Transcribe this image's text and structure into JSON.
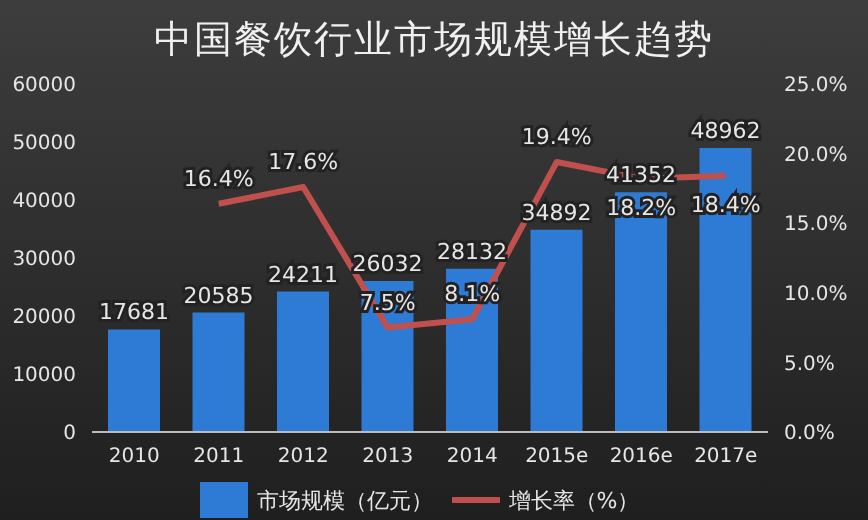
{
  "chart_data": {
    "type": "bar",
    "title": "中国餐饮行业市场规模增长趋势",
    "categories": [
      "2010",
      "2011",
      "2012",
      "2013",
      "2014",
      "2015e",
      "2016e",
      "2017e"
    ],
    "series": [
      {
        "name": "市场规模（亿元）",
        "color": "#2e7bd6",
        "values": [
          17681,
          20585,
          24211,
          26032,
          28132,
          34892,
          41352,
          48962
        ],
        "value_labels": [
          "17681",
          "20585",
          "24211",
          "26032",
          "28132",
          "34892",
          "41352",
          "48962"
        ]
      },
      {
        "name": "增长率（%）",
        "type": "line",
        "axis": "y2",
        "color": "#c0504d",
        "values": [
          null,
          16.4,
          17.6,
          7.5,
          8.1,
          19.4,
          18.2,
          18.4
        ],
        "value_labels": [
          null,
          "16.4%",
          "17.6%",
          "7.5%",
          "8.1%",
          "19.4%",
          "18.2%",
          "18.4%"
        ]
      }
    ],
    "ylim": [
      0,
      60000
    ],
    "yticks": [
      0,
      10000,
      20000,
      30000,
      40000,
      50000,
      60000
    ],
    "y2lim": [
      0,
      25
    ],
    "y2ticks": [
      {
        "value": 0,
        "label": "0.0%"
      },
      {
        "value": 5,
        "label": "5.0%"
      },
      {
        "value": 10,
        "label": "10.0%"
      },
      {
        "value": 15,
        "label": "15.0%"
      },
      {
        "value": 20,
        "label": "20.0%"
      },
      {
        "value": 25,
        "label": "25.0%"
      }
    ],
    "grid": false,
    "legend": "bottom",
    "marker": "none",
    "line_style": "solid"
  }
}
